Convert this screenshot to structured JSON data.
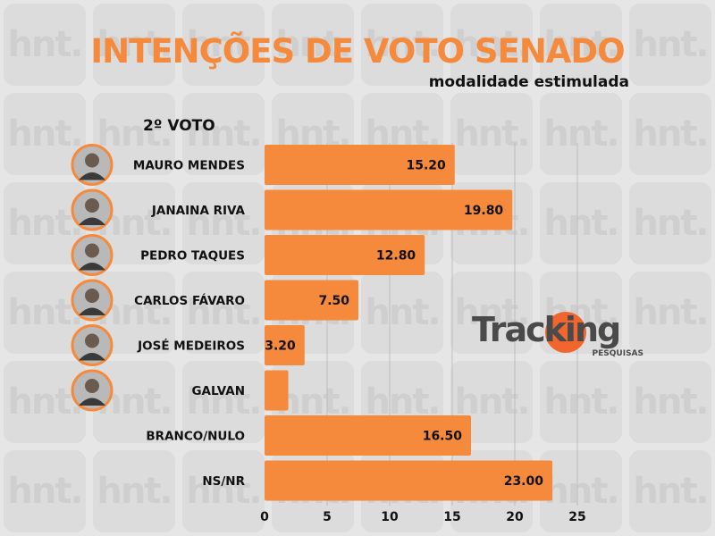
{
  "header": {
    "title": "INTENÇÕES DE VOTO SENADO",
    "subtitle": "modalidade estimulada",
    "section": "2º VOTO"
  },
  "brand": {
    "name": "Tracking",
    "sub": "PESQUISAS",
    "watermark": "hnt."
  },
  "colors": {
    "bar": "#f58a3c",
    "title": "#f58a3c",
    "text": "#111111",
    "background": "#e6e6e6",
    "grid": "#bdbdbd"
  },
  "chart_data": {
    "type": "bar",
    "orientation": "horizontal",
    "categories": [
      "MAURO MENDES",
      "JANAINA RIVA",
      "PEDRO TAQUES",
      "CARLOS FÁVARO",
      "JOSÉ MEDEIROS",
      "GALVAN",
      "BRANCO/NULO",
      "NS/NR"
    ],
    "values": [
      15.2,
      19.8,
      12.8,
      7.5,
      3.2,
      1.9,
      16.5,
      23.0
    ],
    "data_labels": [
      "15.20",
      "19.80",
      "12.80",
      "7.50",
      "3.20",
      "",
      "16.50",
      "23.00"
    ],
    "candidate_photo": [
      true,
      true,
      true,
      true,
      true,
      true,
      false,
      false
    ],
    "xlim": [
      0,
      25
    ],
    "xticks": [
      "0",
      "5",
      "10",
      "15",
      "20",
      "25"
    ],
    "grid": true
  }
}
